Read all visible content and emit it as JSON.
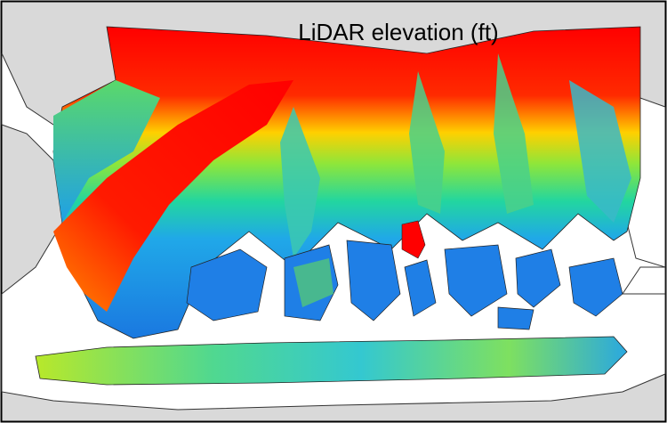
{
  "title": "LiDAR elevation (ft)"
}
